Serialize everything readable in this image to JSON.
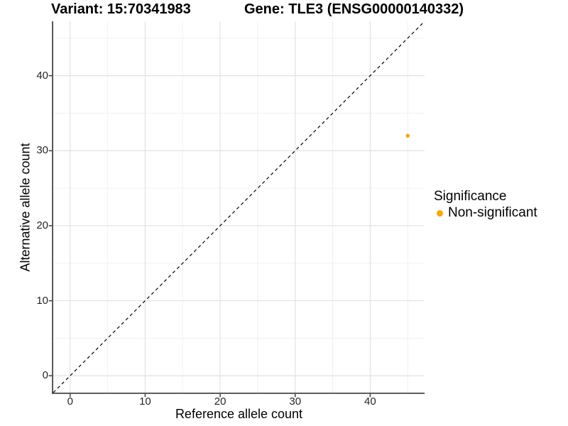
{
  "chart_data": {
    "type": "scatter",
    "titles": {
      "left": "Variant: 15:70341983",
      "right": "Gene: TLE3 (ENSG00000140332)"
    },
    "xlabel": "Reference allele count",
    "ylabel": "Alternative allele count",
    "xlim": [
      -2.25,
      47.25
    ],
    "ylim": [
      -2.25,
      47.25
    ],
    "x_ticks": [
      0,
      10,
      20,
      30,
      40
    ],
    "y_ticks": [
      0,
      10,
      20,
      30,
      40
    ],
    "x_minor_ticks": [
      5,
      15,
      25,
      35,
      45
    ],
    "y_minor_ticks": [
      5,
      15,
      25,
      35,
      45
    ],
    "grid": "major+minor",
    "points": [
      {
        "x": 45,
        "y": 32,
        "series": "Non-significant"
      }
    ],
    "reference_line": {
      "type": "identity y=x",
      "style": "dashed",
      "from": [
        -2.25,
        -2.25
      ],
      "to": [
        47.25,
        47.25
      ]
    },
    "legend": {
      "position": "right",
      "title": "Significance",
      "entries": [
        {
          "label": "Non-significant",
          "color": "#FFA500"
        }
      ]
    },
    "colors": {
      "point": "#FFA500",
      "grid_major": "#E2E2E2",
      "grid_minor": "#F0F0F0",
      "axis": "#464646",
      "reference_line": "#000000",
      "tick_text": "#262626"
    }
  }
}
